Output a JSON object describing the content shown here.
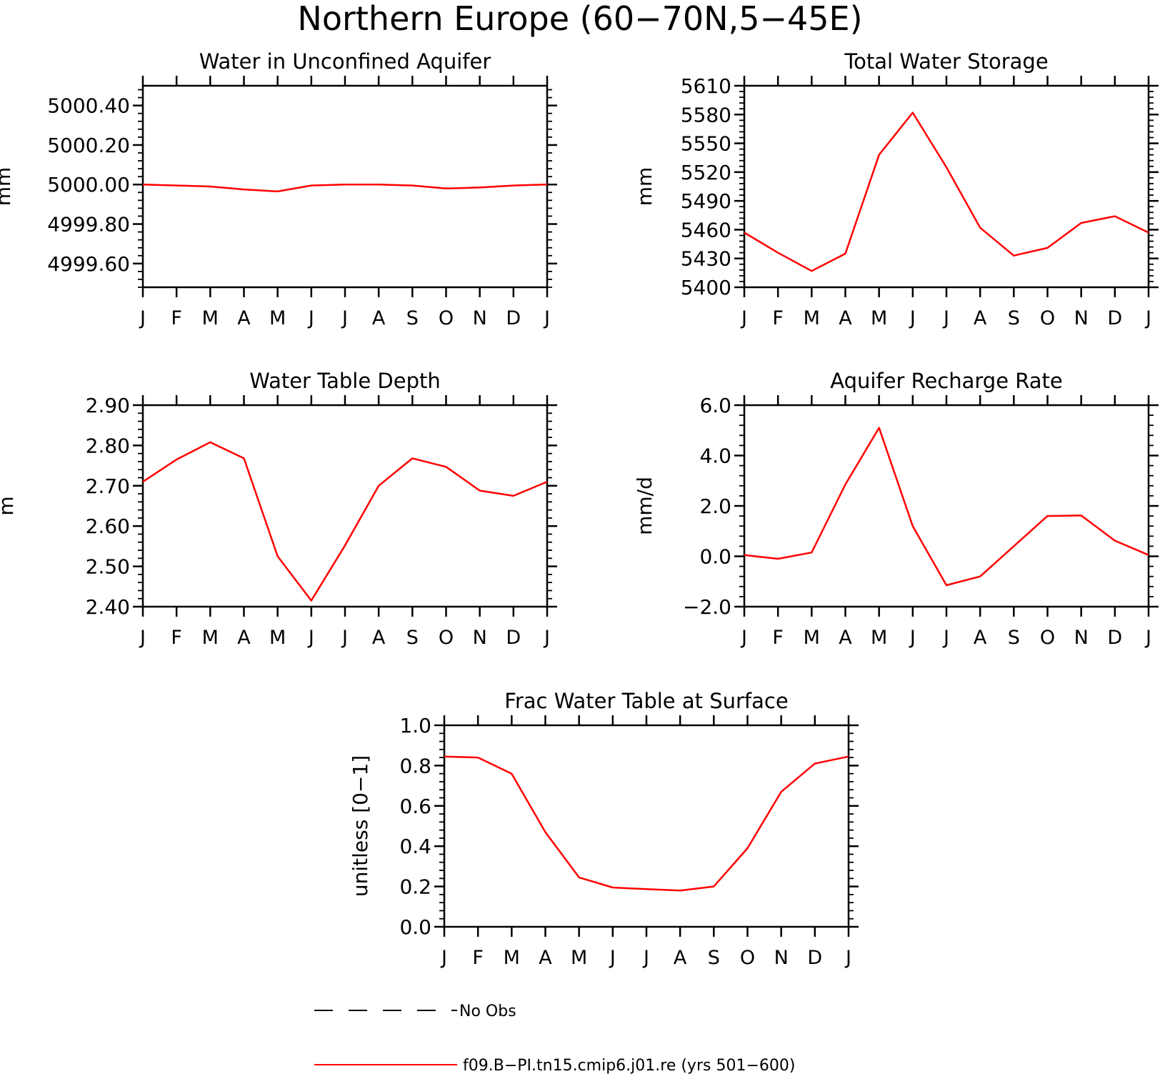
{
  "figure": {
    "title": "Northern Europe (60−70N,5−45E)",
    "line_color": "#ff0000",
    "obs_color": "#000000"
  },
  "legend": {
    "obs_label": "No Obs",
    "model_label": "f09.B−PI.tn15.cmip6.j01.re (yrs 501−600)"
  },
  "chart_data": [
    {
      "type": "line",
      "title": "Water in Unconfined Aquifer",
      "ylabel": "mm",
      "categories": [
        "J",
        "F",
        "M",
        "A",
        "M",
        "J",
        "J",
        "A",
        "S",
        "O",
        "N",
        "D",
        "J"
      ],
      "ylim": [
        4999.48,
        5000.5
      ],
      "yticks": [
        4999.6,
        4999.8,
        5000.0,
        5000.2,
        5000.4
      ],
      "ytick_labels": [
        "4999.60",
        "4999.80",
        "5000.00",
        "5000.20",
        "5000.40"
      ],
      "series": [
        {
          "values": [
            5000.0,
            4999.995,
            4999.99,
            4999.975,
            4999.965,
            4999.995,
            5000.0,
            5000.0,
            4999.995,
            4999.98,
            4999.985,
            4999.995,
            5000.0
          ]
        }
      ]
    },
    {
      "type": "line",
      "title": "Total Water Storage",
      "ylabel": "mm",
      "categories": [
        "J",
        "F",
        "M",
        "A",
        "M",
        "J",
        "J",
        "A",
        "S",
        "O",
        "N",
        "D",
        "J"
      ],
      "ylim": [
        5400,
        5610
      ],
      "yticks": [
        5400,
        5430,
        5460,
        5490,
        5520,
        5550,
        5580,
        5610
      ],
      "ytick_labels": [
        "5400",
        "5430",
        "5460",
        "5490",
        "5520",
        "5550",
        "5580",
        "5610"
      ],
      "series": [
        {
          "values": [
            5457,
            5436,
            5417,
            5435,
            5538,
            5582,
            5525,
            5462,
            5433,
            5441,
            5467,
            5474,
            5457
          ]
        }
      ]
    },
    {
      "type": "line",
      "title": "Water Table Depth",
      "ylabel": "m",
      "categories": [
        "J",
        "F",
        "M",
        "A",
        "M",
        "J",
        "J",
        "A",
        "S",
        "O",
        "N",
        "D",
        "J"
      ],
      "ylim": [
        2.4,
        2.9
      ],
      "yticks": [
        2.4,
        2.5,
        2.6,
        2.7,
        2.8,
        2.9
      ],
      "ytick_labels": [
        "2.40",
        "2.50",
        "2.60",
        "2.70",
        "2.80",
        "2.90"
      ],
      "series": [
        {
          "values": [
            2.71,
            2.765,
            2.808,
            2.768,
            2.525,
            2.415,
            2.552,
            2.7,
            2.768,
            2.747,
            2.688,
            2.675,
            2.71
          ]
        }
      ]
    },
    {
      "type": "line",
      "title": "Aquifer Recharge Rate",
      "ylabel": "mm/d",
      "categories": [
        "J",
        "F",
        "M",
        "A",
        "M",
        "J",
        "J",
        "A",
        "S",
        "O",
        "N",
        "D",
        "J"
      ],
      "ylim": [
        -2.0,
        6.0
      ],
      "yticks": [
        -2.0,
        0.0,
        2.0,
        4.0,
        6.0
      ],
      "ytick_labels": [
        "−2.0",
        "0.0",
        "2.0",
        "4.0",
        "6.0"
      ],
      "series": [
        {
          "values": [
            0.05,
            -0.1,
            0.15,
            2.85,
            5.1,
            1.2,
            -1.15,
            -0.8,
            0.4,
            1.6,
            1.62,
            0.62,
            0.05
          ]
        }
      ]
    },
    {
      "type": "line",
      "title": "Frac Water Table at Surface",
      "ylabel": "unitless [0−1]",
      "categories": [
        "J",
        "F",
        "M",
        "A",
        "M",
        "J",
        "J",
        "A",
        "S",
        "O",
        "N",
        "D",
        "J"
      ],
      "ylim": [
        0.0,
        1.0
      ],
      "yticks": [
        0.0,
        0.2,
        0.4,
        0.6,
        0.8,
        1.0
      ],
      "ytick_labels": [
        "0.0",
        "0.2",
        "0.4",
        "0.6",
        "0.8",
        "1.0"
      ],
      "series": [
        {
          "values": [
            0.845,
            0.84,
            0.76,
            0.47,
            0.245,
            0.195,
            0.187,
            0.18,
            0.2,
            0.39,
            0.67,
            0.81,
            0.845
          ]
        }
      ]
    }
  ]
}
